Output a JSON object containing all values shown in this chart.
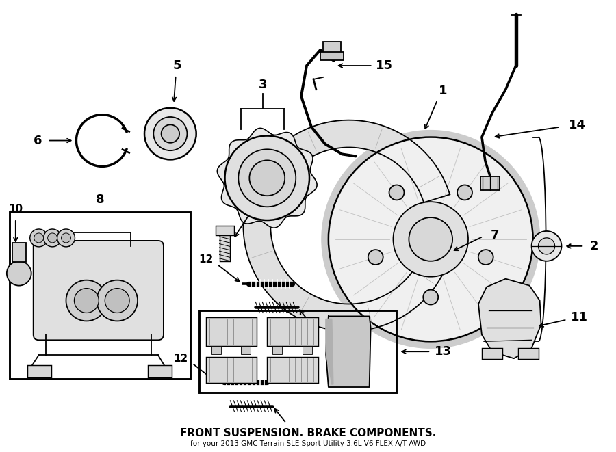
{
  "title": "FRONT SUSPENSION. BRAKE COMPONENTS.",
  "subtitle": "for your 2013 GMC Terrain SLE Sport Utility 3.6L V6 FLEX A/T AWD",
  "bg_color": "#ffffff",
  "line_color": "#000000",
  "fig_width": 9.0,
  "fig_height": 6.61,
  "dpi": 100
}
